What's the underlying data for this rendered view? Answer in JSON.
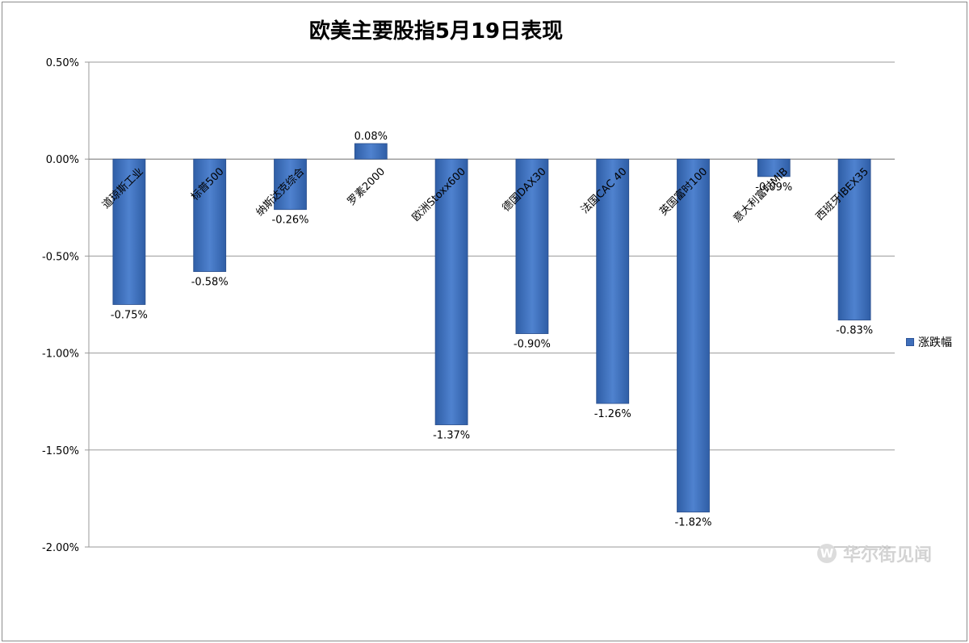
{
  "chart_data": {
    "type": "bar",
    "title": "欧美主要股指5月19日表现",
    "categories": [
      "道琼斯工业",
      "标普500",
      "纳斯达克综合",
      "罗素2000",
      "欧洲Stoxx600",
      "德国DAX30",
      "法国CAC 40",
      "英国富时100",
      "意大利富时MIB",
      "西班牙IBEX35"
    ],
    "series": [
      {
        "name": "涨跌幅",
        "values": [
          -0.75,
          -0.58,
          -0.26,
          0.08,
          -1.37,
          -0.9,
          -1.26,
          -1.82,
          -0.09,
          -0.83
        ],
        "labels": [
          "-0.75%",
          "-0.58%",
          "-0.26%",
          "0.08%",
          "-1.37%",
          "-0.90%",
          "-1.26%",
          "-1.82%",
          "-0.09%",
          "-0.83%"
        ]
      }
    ],
    "ylim": [
      -2.0,
      0.5
    ],
    "yticks": [
      0.5,
      0.0,
      -0.5,
      -1.0,
      -1.5,
      -2.0
    ],
    "ytick_labels": [
      "0.50%",
      "0.00%",
      "-0.50%",
      "-1.00%",
      "-1.50%",
      "-2.00%"
    ],
    "grid": true,
    "legend_position": "right",
    "bar_color": "#3f6fba"
  },
  "watermark": {
    "logo_glyph": "W",
    "text": "华尔街见闻"
  }
}
